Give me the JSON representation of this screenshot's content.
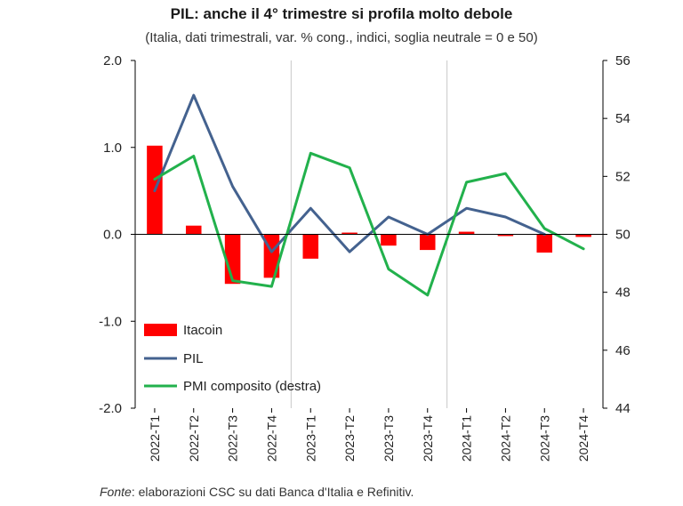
{
  "chart_data": {
    "type": "bar+line",
    "title": "PIL: anche il 4° trimestre si profila molto debole",
    "subtitle": "(Italia, dati trimestrali, var. % cong., indici, soglia neutrale = 0 e 50)",
    "categories": [
      "2022-T1",
      "2022-T2",
      "2022-T3",
      "2022-T4",
      "2023-T1",
      "2023-T2",
      "2023-T3",
      "2023-T4",
      "2024-T1",
      "2024-T2",
      "2024-T3",
      "2024-T4"
    ],
    "y_left": {
      "min": -2.0,
      "max": 2.0,
      "ticks": [
        "2.0",
        "1.0",
        "0.0",
        "-1.0",
        "-2.0"
      ],
      "tick_values": [
        2,
        1,
        0,
        -1,
        -2
      ]
    },
    "y_right": {
      "min": 44,
      "max": 56,
      "ticks": [
        "56",
        "54",
        "52",
        "50",
        "48",
        "46",
        "44"
      ],
      "tick_values": [
        56,
        54,
        52,
        50,
        48,
        46,
        44
      ]
    },
    "series": [
      {
        "name": "Itacoin",
        "kind": "bar",
        "axis": "left",
        "color": "#ff0000",
        "values": [
          1.02,
          0.1,
          -0.57,
          -0.5,
          -0.28,
          0.02,
          -0.13,
          -0.18,
          0.03,
          -0.02,
          -0.21,
          -0.03
        ]
      },
      {
        "name": "PIL",
        "kind": "line",
        "axis": "left",
        "color": "#44628f",
        "values": [
          0.5,
          1.6,
          0.55,
          -0.2,
          0.3,
          -0.2,
          0.2,
          0.0,
          0.3,
          0.2,
          0.0,
          null
        ]
      },
      {
        "name": "PMI composito (destra)",
        "kind": "line",
        "axis": "right",
        "color": "#22b14c",
        "values": [
          51.9,
          52.7,
          48.4,
          48.2,
          52.8,
          52.3,
          48.8,
          47.9,
          51.8,
          52.1,
          50.2,
          49.5
        ]
      }
    ],
    "legend_position": "bottom-left",
    "vertical_separators_after": [
      "2022-T4",
      "2023-T4"
    ]
  },
  "source": {
    "prefix": "Fonte",
    "text": ": elaborazioni CSC su dati Banca d'Italia e Refinitiv."
  }
}
